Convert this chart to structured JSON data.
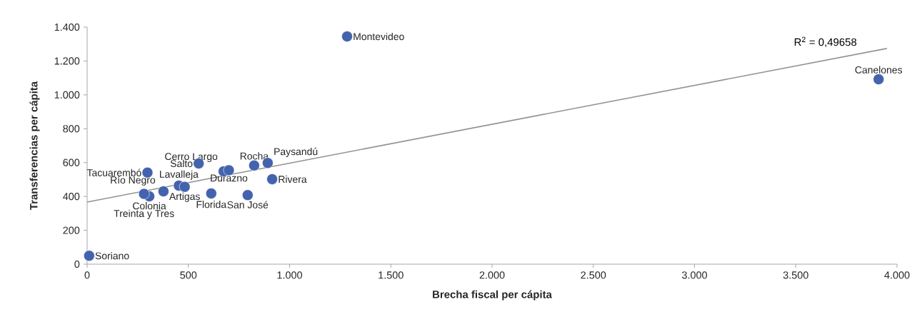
{
  "chart_data": {
    "type": "scatter",
    "xlabel": "Brecha fiscal per cápita",
    "ylabel": "Transferencias per cápita",
    "grid": false,
    "legend": false,
    "annotations": [
      "R$^{2}$ = 0,49658"
    ],
    "xlim": [
      0,
      4000
    ],
    "ylim": [
      0,
      1400
    ],
    "xticks": [
      0,
      500,
      {
        "value": 1000,
        "label": "1.000"
      },
      {
        "value": 1500,
        "label": "1.500"
      },
      {
        "value": 2000,
        "label": "2.000"
      },
      {
        "value": 2500,
        "label": "2.500"
      },
      {
        "value": 3000,
        "label": "3.000"
      },
      {
        "value": 3500,
        "label": "3.500"
      },
      {
        "value": 4000,
        "label": "4.000"
      }
    ],
    "yticks": [
      0,
      200,
      400,
      600,
      800,
      {
        "value": 1000,
        "label": "1.000"
      },
      {
        "value": 1200,
        "label": "1.200"
      },
      {
        "value": 1400,
        "label": "1.400"
      }
    ],
    "series": [
      {
        "name": "Montevideo",
        "color": "#4463ae",
        "x": [
          1284
        ],
        "values": [
          1345
        ]
      },
      {
        "name": "Canelones",
        "color": "#4463ae",
        "x": [
          3909
        ],
        "values": [
          1092
        ]
      },
      {
        "name": "Soriano",
        "color": "#4463ae",
        "x": [
          10
        ],
        "values": [
          50
        ]
      },
      {
        "name": "Tacuarembó",
        "color": "#4463ae",
        "x": [
          298
        ],
        "values": [
          541
        ]
      },
      {
        "name": "Colonia",
        "color": "#4463ae",
        "x": [
          307
        ],
        "values": [
          401
        ]
      },
      {
        "name": "Treinta y Tres",
        "color": "#4463ae",
        "x": [
          281
        ],
        "values": [
          415
        ]
      },
      {
        "name": "Río Negro",
        "color": "#4463ae",
        "x": [
          377
        ],
        "values": [
          430
        ]
      },
      {
        "name": "Lavalleja",
        "color": "#4463ae",
        "x": [
          453
        ],
        "values": [
          464
        ]
      },
      {
        "name": "Artigas",
        "color": "#4463ae",
        "x": [
          482
        ],
        "values": [
          457
        ]
      },
      {
        "name": "Salto",
        "color": "#4463ae",
        "x": [
          551
        ],
        "values": [
          595
        ]
      },
      {
        "name": "Florida",
        "color": "#4463ae",
        "x": [
          613
        ],
        "values": [
          418
        ]
      },
      {
        "name": "Cerro Largo",
        "color": "#4463ae",
        "x": [
          674
        ],
        "values": [
          548
        ]
      },
      {
        "name": "Durazno",
        "color": "#4463ae",
        "x": [
          700
        ],
        "values": [
          555
        ]
      },
      {
        "name": "Rocha",
        "color": "#4463ae",
        "x": [
          825
        ],
        "values": [
          583
        ]
      },
      {
        "name": "Paysandú",
        "color": "#4463ae",
        "x": [
          892
        ],
        "values": [
          598
        ]
      },
      {
        "name": "Rivera",
        "color": "#4463ae",
        "x": [
          914
        ],
        "values": [
          502
        ]
      },
      {
        "name": "San José",
        "color": "#4463ae",
        "x": [
          793
        ],
        "values": [
          408
        ]
      },
      {
        "type": "line",
        "marker": "none",
        "color": "#939393",
        "x": [
          0,
          3950
        ],
        "values": [
          367,
          1274
        ]
      }
    ]
  }
}
